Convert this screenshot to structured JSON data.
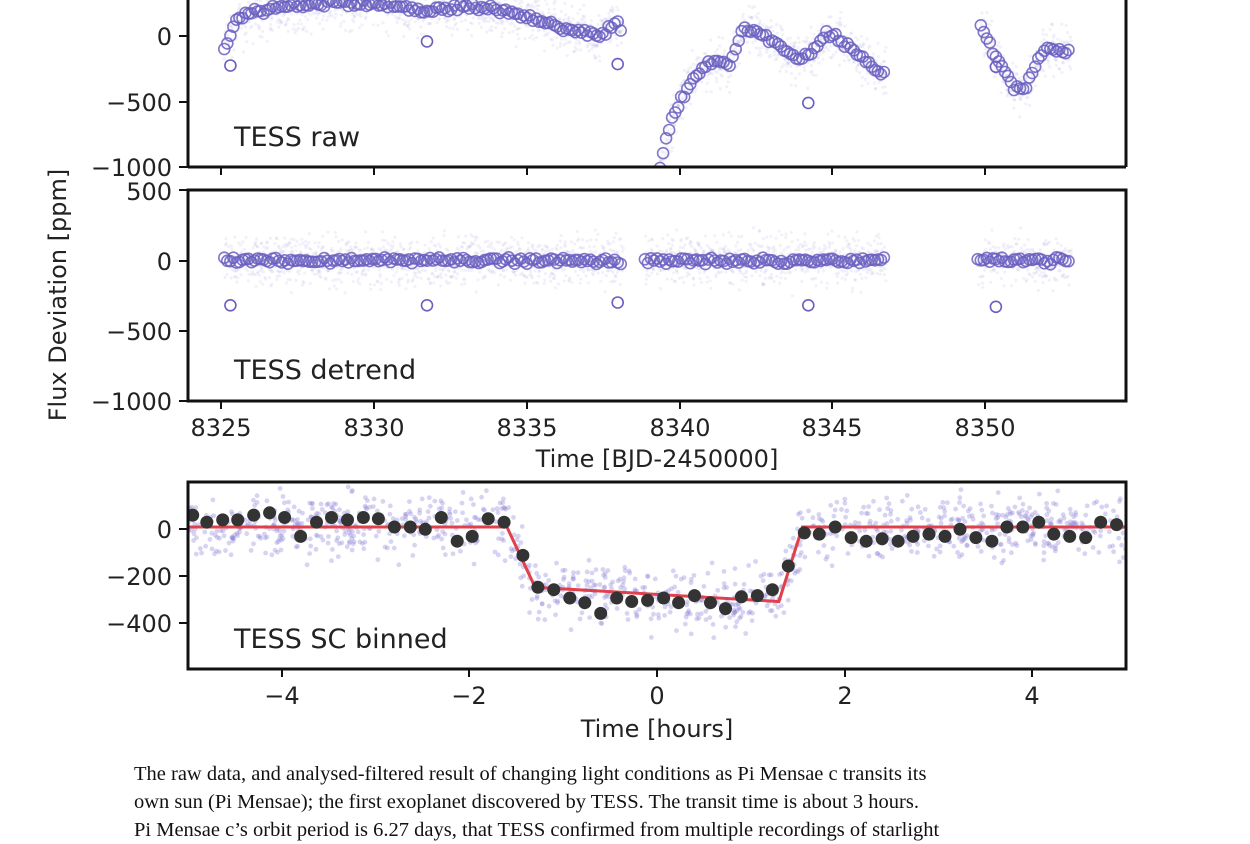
{
  "figure": {
    "shared_ylabel": "Flux Deviation [ppm]"
  },
  "chart_data": [
    {
      "type": "scatter",
      "panel": "raw",
      "label": "TESS raw",
      "xlim": [
        8323.9,
        8354.9
      ],
      "ylim": [
        -1000,
        400
      ],
      "yticks": [
        0,
        -500,
        -1000
      ],
      "ytick_labels": [
        "0",
        "−500",
        "−1000"
      ],
      "point_color": "#6a5fc1",
      "segments": [
        {
          "x": [
            8325.1,
            8325.3,
            8325.6,
            8326.2,
            8327.0,
            8328.0,
            8329.0,
            8330.0,
            8331.0,
            8331.8,
            8332.0,
            8333.0,
            8334.0,
            8335.0,
            8336.0,
            8336.5,
            8337.0,
            8337.5,
            8338.0,
            8338.3
          ],
          "y": [
            -100,
            0,
            120,
            160,
            200,
            220,
            230,
            220,
            200,
            160,
            180,
            200,
            180,
            140,
            60,
            30,
            10,
            -30,
            80,
            10
          ]
        },
        {
          "x": [
            8339.5,
            8339.8,
            8340.2,
            8340.6,
            8341.0,
            8341.4,
            8341.8,
            8342.3,
            8342.8,
            8343.5,
            8344.0,
            8344.5,
            8345.0,
            8345.5,
            8346.0,
            8346.5,
            8347.0
          ],
          "y": [
            -1000,
            -700,
            -500,
            -350,
            -250,
            -200,
            -250,
            50,
            0,
            -100,
            -200,
            -150,
            0,
            -50,
            -150,
            -250,
            -300
          ]
        },
        {
          "x": [
            8350.1,
            8350.4,
            8350.8,
            8351.2,
            8351.6,
            8352.0,
            8352.4,
            8352.8,
            8353.1
          ],
          "y": [
            50,
            -100,
            -250,
            -400,
            -400,
            -200,
            -100,
            -150,
            -120
          ]
        }
      ],
      "transit_dips": [
        {
          "x": 8325.3,
          "y": -240
        },
        {
          "x": 8331.8,
          "y": -60
        },
        {
          "x": 8338.1,
          "y": -230
        },
        {
          "x": 8344.4,
          "y": -520
        },
        {
          "x": 8350.6,
          "y": -250
        }
      ]
    },
    {
      "type": "scatter",
      "panel": "detrend",
      "label": "TESS detrend",
      "xlim": [
        8323.9,
        8354.9
      ],
      "ylim": [
        -1000,
        500
      ],
      "yticks": [
        500,
        0,
        -500,
        -1000
      ],
      "ytick_labels": [
        "500",
        "0",
        "−500",
        "−1000"
      ],
      "xticks": [
        8325,
        8330,
        8335,
        8340,
        8345,
        8350
      ],
      "xtick_labels": [
        "8325",
        "8330",
        "8335",
        "8340",
        "8345",
        "8350"
      ],
      "xlabel": "Time [BJD-2450000]",
      "segments_x": [
        [
          8325.1,
          8338.3
        ],
        [
          8339.0,
          8347.0
        ],
        [
          8350.0,
          8353.1
        ]
      ],
      "baseline": 0,
      "transit_dips": [
        {
          "x": 8325.3,
          "y": -320
        },
        {
          "x": 8331.8,
          "y": -320
        },
        {
          "x": 8338.1,
          "y": -300
        },
        {
          "x": 8344.4,
          "y": -320
        },
        {
          "x": 8350.6,
          "y": -330
        }
      ]
    },
    {
      "type": "scatter",
      "panel": "binned",
      "label": "TESS SC binned",
      "xlim": [
        -5,
        5
      ],
      "ylim": [
        -600,
        190
      ],
      "yticks": [
        0,
        -200,
        -400
      ],
      "ytick_labels": [
        "0",
        "−200",
        "−400"
      ],
      "xticks": [
        -4,
        -2,
        0,
        2,
        4
      ],
      "xtick_labels": [
        "−4",
        "−2",
        "0",
        "2",
        "4"
      ],
      "xlabel": "Time [hours]",
      "model_color": "#e0404a",
      "binned_color": "#333333",
      "model": {
        "x": [
          -5,
          -1.6,
          -1.3,
          1.3,
          1.55,
          5
        ],
        "y": [
          0,
          0,
          -255,
          -315,
          0,
          0
        ]
      },
      "binned": [
        {
          "x": -4.95,
          "y": 50
        },
        {
          "x": -4.8,
          "y": 20
        },
        {
          "x": -4.63,
          "y": 30
        },
        {
          "x": -4.47,
          "y": 30
        },
        {
          "x": -4.3,
          "y": 50
        },
        {
          "x": -4.13,
          "y": 60
        },
        {
          "x": -3.97,
          "y": 40
        },
        {
          "x": -3.8,
          "y": -40
        },
        {
          "x": -3.63,
          "y": 20
        },
        {
          "x": -3.47,
          "y": 40
        },
        {
          "x": -3.3,
          "y": 30
        },
        {
          "x": -3.13,
          "y": 40
        },
        {
          "x": -2.97,
          "y": 35
        },
        {
          "x": -2.8,
          "y": 0
        },
        {
          "x": -2.63,
          "y": 0
        },
        {
          "x": -2.47,
          "y": -10
        },
        {
          "x": -2.3,
          "y": 40
        },
        {
          "x": -2.13,
          "y": -60
        },
        {
          "x": -1.97,
          "y": -40
        },
        {
          "x": -1.8,
          "y": 35
        },
        {
          "x": -1.63,
          "y": 20
        },
        {
          "x": -1.43,
          "y": -120
        },
        {
          "x": -1.27,
          "y": -255
        },
        {
          "x": -1.1,
          "y": -265
        },
        {
          "x": -0.93,
          "y": -300
        },
        {
          "x": -0.77,
          "y": -320
        },
        {
          "x": -0.6,
          "y": -365
        },
        {
          "x": -0.43,
          "y": -300
        },
        {
          "x": -0.27,
          "y": -315
        },
        {
          "x": -0.1,
          "y": -310
        },
        {
          "x": 0.07,
          "y": -300
        },
        {
          "x": 0.23,
          "y": -320
        },
        {
          "x": 0.4,
          "y": -290
        },
        {
          "x": 0.57,
          "y": -320
        },
        {
          "x": 0.73,
          "y": -345
        },
        {
          "x": 0.9,
          "y": -295
        },
        {
          "x": 1.07,
          "y": -290
        },
        {
          "x": 1.23,
          "y": -265
        },
        {
          "x": 1.4,
          "y": -165
        },
        {
          "x": 1.57,
          "y": -25
        },
        {
          "x": 1.73,
          "y": -30
        },
        {
          "x": 1.9,
          "y": 0
        },
        {
          "x": 2.07,
          "y": -45
        },
        {
          "x": 2.23,
          "y": -60
        },
        {
          "x": 2.4,
          "y": -50
        },
        {
          "x": 2.57,
          "y": -60
        },
        {
          "x": 2.73,
          "y": -40
        },
        {
          "x": 2.9,
          "y": -30
        },
        {
          "x": 3.07,
          "y": -40
        },
        {
          "x": 3.23,
          "y": -10
        },
        {
          "x": 3.4,
          "y": -45
        },
        {
          "x": 3.57,
          "y": -60
        },
        {
          "x": 3.73,
          "y": 0
        },
        {
          "x": 3.9,
          "y": 0
        },
        {
          "x": 4.07,
          "y": 20
        },
        {
          "x": 4.23,
          "y": -30
        },
        {
          "x": 4.4,
          "y": -40
        },
        {
          "x": 4.57,
          "y": -45
        },
        {
          "x": 4.73,
          "y": 20
        },
        {
          "x": 4.9,
          "y": 10
        }
      ]
    }
  ],
  "caption": {
    "lines": [
      "The raw data, and analysed-filtered result of changing light conditions as Pi Mensae c transits its",
      "own sun (Pi Mensae); the first exoplanet discovered by TESS. The  transit time is about 3 hours.",
      "Pi Mensae c’s orbit period is 6.27 days, that TESS confirmed from multiple recordings of starlight"
    ]
  }
}
